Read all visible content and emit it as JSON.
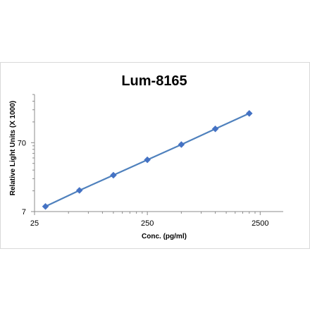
{
  "chart_data": {
    "type": "scatter",
    "title": "Lum-8165",
    "xlabel": "Conc. (pg/ml)",
    "ylabel": "Relative Light Units (X 1000)",
    "x_scale": "log",
    "y_scale": "log",
    "xlim": [
      25,
      4000
    ],
    "ylim": [
      7,
      350
    ],
    "x_ticks": [
      {
        "value": 25,
        "label": "25"
      },
      {
        "value": 250,
        "label": "250"
      },
      {
        "value": 2500,
        "label": "2500"
      }
    ],
    "y_ticks": [
      {
        "value": 7,
        "label": "7"
      },
      {
        "value": 70,
        "label": "70"
      }
    ],
    "series": [
      {
        "color": "#4472c4",
        "marker": "diamond",
        "line": "straight",
        "x": [
          31.25,
          62.5,
          125,
          250,
          500,
          1000,
          2000
        ],
        "y": [
          8.3,
          14.2,
          23.6,
          39.5,
          65.7,
          111,
          186
        ]
      }
    ],
    "grid": false,
    "legend": "none",
    "colors": {
      "series": "#4472c4",
      "line": "#4f81bd",
      "axis": "#8c8c8c",
      "frame": "#d9d9d9"
    }
  }
}
